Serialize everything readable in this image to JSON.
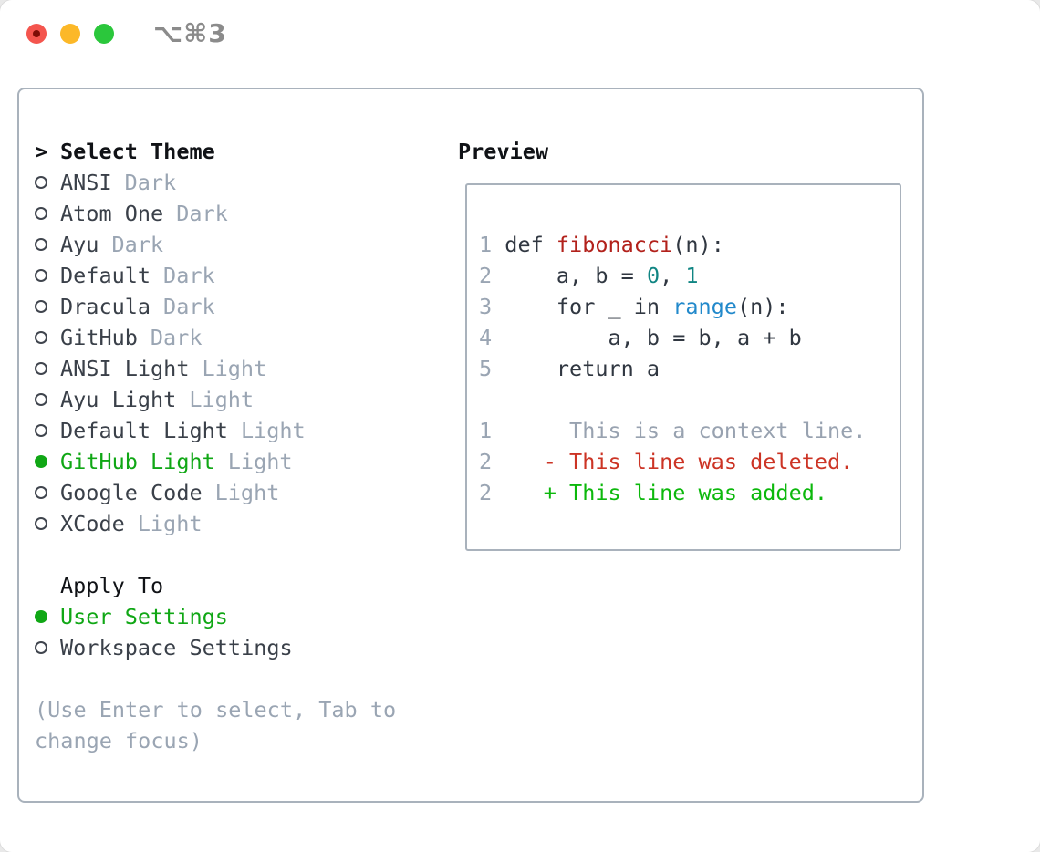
{
  "window": {
    "shortcut_label": "⌥⌘3"
  },
  "colors": {
    "selection_green": "#10a715",
    "diff_added_green": "#0cb80c",
    "diff_deleted_red": "#cc3425",
    "function_red": "#b2211b",
    "builtin_blue": "#2289cb",
    "number_teal": "#108583",
    "muted_gray": "#9aa5b3",
    "border_gray": "#a9b2bc",
    "traffic_red": "#f4554e",
    "traffic_yellow": "#fcb828",
    "traffic_green": "#2bc73c"
  },
  "theme_list": {
    "prompt": ">",
    "title": "Select Theme",
    "items": [
      {
        "name": "ANSI",
        "variant": "Dark",
        "selected": false
      },
      {
        "name": "Atom One",
        "variant": "Dark",
        "selected": false
      },
      {
        "name": "Ayu",
        "variant": "Dark",
        "selected": false
      },
      {
        "name": "Default",
        "variant": "Dark",
        "selected": false
      },
      {
        "name": "Dracula",
        "variant": "Dark",
        "selected": false
      },
      {
        "name": "GitHub",
        "variant": "Dark",
        "selected": false
      },
      {
        "name": "ANSI Light",
        "variant": "Light",
        "selected": false
      },
      {
        "name": "Ayu Light",
        "variant": "Light",
        "selected": false
      },
      {
        "name": "Default Light",
        "variant": "Light",
        "selected": false
      },
      {
        "name": "GitHub Light",
        "variant": "Light",
        "selected": true
      },
      {
        "name": "Google Code",
        "variant": "Light",
        "selected": false
      },
      {
        "name": "XCode",
        "variant": "Light",
        "selected": false
      }
    ]
  },
  "apply_to": {
    "title": "Apply To",
    "options": [
      {
        "label": "User Settings",
        "selected": true
      },
      {
        "label": "Workspace Settings",
        "selected": false
      }
    ]
  },
  "help": {
    "line1": "(Use Enter to select, Tab to",
    "line2": "change focus)"
  },
  "preview": {
    "title": "Preview",
    "code": {
      "l1": {
        "num": "1",
        "s0": " def ",
        "fn": "fibonacci",
        "s1": "(n):"
      },
      "l2": {
        "num": "2",
        "s0": "     a, b = ",
        "n0": "0",
        "s1": ", ",
        "n1": "1"
      },
      "l3": {
        "num": "3",
        "s0": "     for _ in ",
        "fn": "range",
        "s1": "(n):"
      },
      "l4": {
        "num": "4",
        "s0": "         a, b = b, a + b"
      },
      "l5": {
        "num": "5",
        "s0": "     return a"
      },
      "l7": {
        "num": "1",
        "s0": "      This is a context line."
      },
      "l8": {
        "num": "2",
        "s0": "    - This line was deleted."
      },
      "l9": {
        "num": "2",
        "s0": "    + This line was added."
      }
    }
  }
}
